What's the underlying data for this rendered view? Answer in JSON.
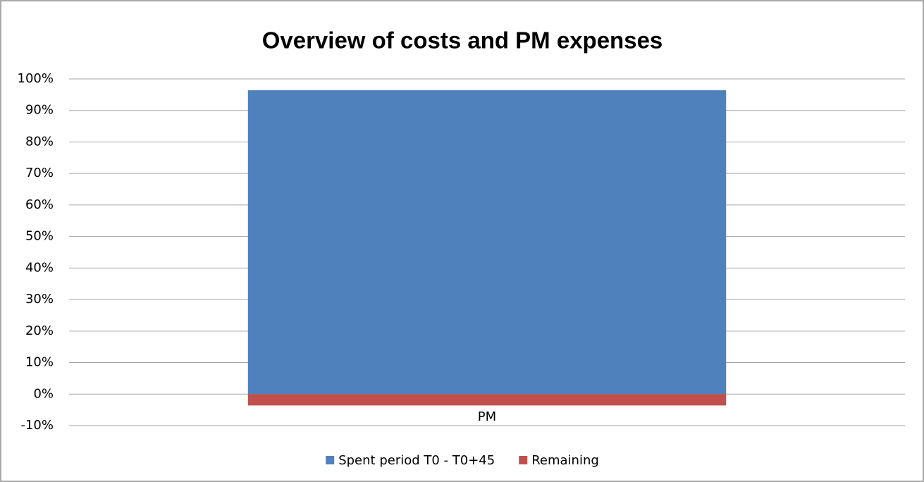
{
  "chart_data": {
    "type": "stacked_bar",
    "title": "Overview of costs and PM expenses",
    "categories": [
      "PM"
    ],
    "series": [
      {
        "name": "Spent period T0 - T0+45",
        "color": "#4f81bd",
        "values": [
          96.4
        ]
      },
      {
        "name": "Remaining",
        "color": "#c0504d",
        "values": [
          -3.6
        ]
      }
    ],
    "ylim": [
      -10,
      100
    ],
    "yticks": [
      {
        "value": -10,
        "label": "-10%"
      },
      {
        "value": 0,
        "label": "0%"
      },
      {
        "value": 10,
        "label": "10%"
      },
      {
        "value": 20,
        "label": "20%"
      },
      {
        "value": 30,
        "label": "30%"
      },
      {
        "value": 40,
        "label": "40%"
      },
      {
        "value": 50,
        "label": "50%"
      },
      {
        "value": 60,
        "label": "60%"
      },
      {
        "value": 70,
        "label": "70%"
      },
      {
        "value": 80,
        "label": "80%"
      },
      {
        "value": 90,
        "label": "90%"
      },
      {
        "value": 100,
        "label": "100%"
      }
    ],
    "grid": true,
    "legend": "bottom"
  }
}
